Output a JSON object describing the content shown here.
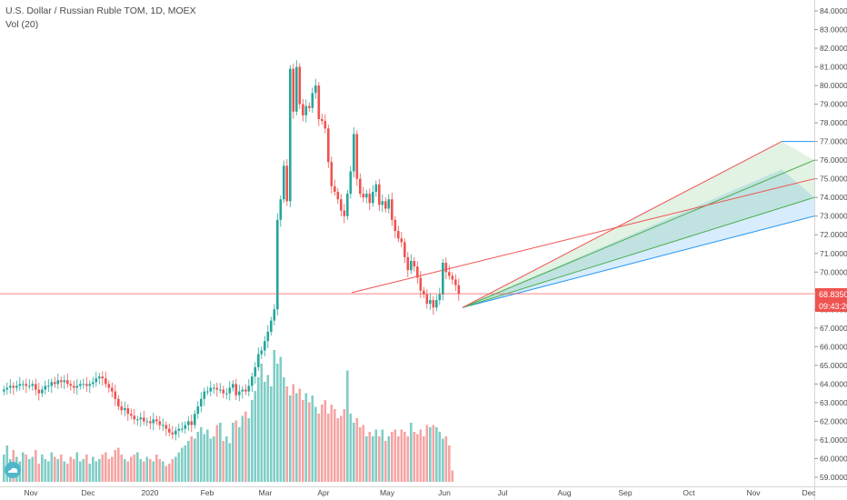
{
  "legend": {
    "symbol_line": "U.S. Dollar / Russian Ruble TOM, 1D, MOEX",
    "volume_line": "Vol (20)"
  },
  "colors": {
    "up": "#26a69a",
    "down": "#ef5350",
    "up_volume": "#7fcdc6",
    "down_volume": "#f5a5a3",
    "price_line": "#ef5350",
    "trend_line": "#ef5350",
    "fib_green": "#4caf50",
    "fib_blue": "#2196f3"
  },
  "chart_data": {
    "type": "candlestick",
    "instrument": "U.S. Dollar / Russian Ruble TOM, 1D, MOEX",
    "y_axis": {
      "min": 58.6,
      "max": 84.3,
      "tick_labels": [
        "59.0000",
        "60.0000",
        "61.0000",
        "62.0000",
        "63.0000",
        "64.0000",
        "65.0000",
        "66.0000",
        "67.0000",
        "68.0000",
        "69.0000",
        "70.0000",
        "71.0000",
        "72.0000",
        "73.0000",
        "74.0000",
        "75.0000",
        "76.0000",
        "77.0000",
        "78.0000",
        "79.0000",
        "80.0000",
        "81.0000",
        "82.0000",
        "83.0000",
        "84.0000"
      ]
    },
    "x_axis": {
      "tick_labels": [
        "Nov",
        "Dec",
        "2020",
        "Feb",
        "Mar",
        "Apr",
        "May",
        "Jun",
        "Jul",
        "Aug",
        "Sep",
        "Oct",
        "Nov",
        "Dec"
      ]
    },
    "last_price_label": "68.8350",
    "countdown_label": "09:43:20",
    "last_price": 68.835,
    "close_series": [
      63.7,
      63.8,
      63.9,
      63.8,
      63.9,
      64.0,
      64.0,
      63.9,
      63.9,
      64.0,
      63.7,
      63.5,
      63.7,
      63.9,
      63.9,
      64.1,
      64.0,
      64.2,
      64.1,
      64.2,
      64.0,
      63.9,
      63.8,
      63.9,
      64.0,
      64.0,
      63.9,
      64.0,
      64.1,
      64.3,
      64.4,
      64.3,
      64.0,
      63.8,
      63.6,
      63.2,
      62.8,
      62.6,
      62.7,
      62.4,
      62.3,
      62.1,
      62.1,
      62.2,
      62.0,
      62.0,
      61.9,
      62.1,
      62.0,
      61.8,
      61.8,
      61.6,
      61.4,
      61.3,
      61.5,
      61.6,
      61.6,
      61.8,
      62.0,
      61.8,
      62.4,
      62.8,
      63.2,
      63.6,
      63.6,
      63.8,
      63.8,
      63.7,
      63.7,
      63.5,
      63.5,
      63.8,
      64.0,
      63.4,
      63.6,
      63.7,
      63.6,
      63.9,
      64.4,
      64.9,
      65.6,
      65.8,
      66.3,
      66.8,
      67.4,
      68.0,
      72.8,
      73.9,
      75.7,
      73.8,
      80.9,
      78.6,
      81.0,
      79.0,
      78.4,
      78.9,
      78.8,
      79.6,
      80.0,
      78.2,
      78.1,
      77.7,
      75.9,
      74.6,
      74.3,
      73.9,
      73.3,
      73.0,
      74.2,
      75.4,
      77.4,
      75.0,
      74.2,
      74.0,
      74.2,
      73.7,
      74.3,
      74.7,
      73.6,
      73.8,
      73.4,
      73.9,
      72.8,
      72.2,
      71.8,
      71.6,
      70.8,
      70.1,
      70.6,
      70.3,
      69.7,
      69.0,
      68.8,
      68.3,
      68.5,
      68.1,
      68.5,
      68.8,
      70.5,
      70.0,
      69.8,
      69.6,
      69.3,
      68.84
    ],
    "volume_series": [
      1.2,
      1.6,
      1.0,
      1.4,
      1.1,
      0.9,
      1.3,
      1.2,
      1.0,
      1.1,
      1.4,
      0.8,
      1.2,
      1.0,
      0.9,
      1.3,
      1.1,
      1.0,
      1.2,
      0.9,
      0.8,
      1.1,
      1.0,
      1.3,
      0.9,
      1.0,
      1.2,
      0.8,
      1.1,
      0.9,
      1.0,
      1.2,
      1.3,
      1.0,
      1.1,
      1.4,
      1.5,
      1.2,
      1.0,
      0.9,
      1.1,
      1.2,
      1.3,
      1.0,
      0.9,
      1.1,
      1.0,
      0.9,
      1.2,
      1.0,
      0.9,
      0.7,
      0.8,
      1.0,
      1.1,
      1.3,
      1.5,
      1.6,
      1.8,
      2.0,
      1.9,
      2.2,
      2.4,
      2.1,
      2.3,
      1.9,
      2.0,
      2.5,
      2.6,
      1.8,
      2.0,
      1.7,
      2.6,
      2.7,
      2.4,
      2.9,
      3.1,
      2.8,
      3.6,
      4.0,
      4.6,
      5.2,
      4.4,
      4.7,
      4.2,
      5.8,
      5.2,
      5.5,
      4.6,
      4.2,
      3.8,
      4.3,
      3.9,
      4.1,
      3.6,
      3.9,
      3.5,
      3.8,
      3.3,
      3.0,
      3.4,
      3.6,
      3.0,
      3.4,
      3.2,
      2.8,
      2.9,
      3.2,
      4.9,
      3.0,
      2.6,
      2.8,
      2.4,
      2.5,
      2.0,
      2.2,
      2.0,
      2.3,
      2.0,
      2.3,
      1.8,
      2.0,
      2.2,
      2.3,
      2.0,
      2.3,
      2.2,
      2.0,
      2.6,
      2.2,
      2.1,
      2.3,
      2.0,
      2.5,
      2.4,
      2.5,
      2.4,
      2.2,
      1.9,
      2.0,
      1.6,
      0.5
    ],
    "drawings": {
      "trend_line": {
        "from": [
          68.9
        ],
        "to": [
          75.0
        ]
      },
      "fib_channel_levels": [
        73.0,
        74.0,
        76.0,
        77.0
      ]
    }
  }
}
